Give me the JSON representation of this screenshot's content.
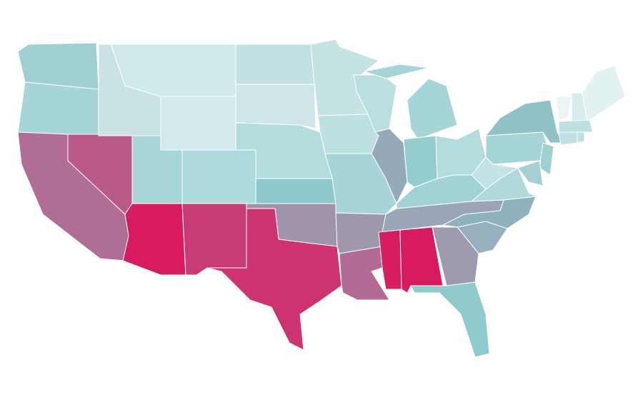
{
  "map": {
    "fills": [
      "#9ed0d3",
      "#a6d5d7",
      "#b06e96",
      "#ba5a89",
      "#c9e3e5",
      "#d0e9ea",
      "#d2eaeb",
      "#a8d5d8",
      "#d81b60",
      "#addadc",
      "#c83c73",
      "#c3e1e2",
      "#cee6e8",
      "#b3dcdd",
      "#8ecacd",
      "#a094ad",
      "#cc336f",
      "#c6e3e4",
      "#bde0e1",
      "#a7d4d6",
      "#9e97ad",
      "#b26b95",
      "#b9dfe0",
      "#95aab8",
      "#a6d5d7",
      "#a6d5d7",
      "#92cdd0",
      "#b3dcdd",
      "#a1d2d4",
      "#9aa6b8",
      "#d81c60",
      "#d81b60",
      "#9e9aae",
      "#8fcacc",
      "#96b0bf",
      "#8fb2bf",
      "#afd9db",
      "#c5e3e4",
      "#a6d5d7",
      "#8fc1c7",
      "#eef4f5",
      "#d9eced",
      "#e2f2f2",
      "#bfe0e1",
      "#c0e1e2",
      "#c0e1e2",
      "#9ecfd2",
      "#a6cfd3"
    ]
  }
}
